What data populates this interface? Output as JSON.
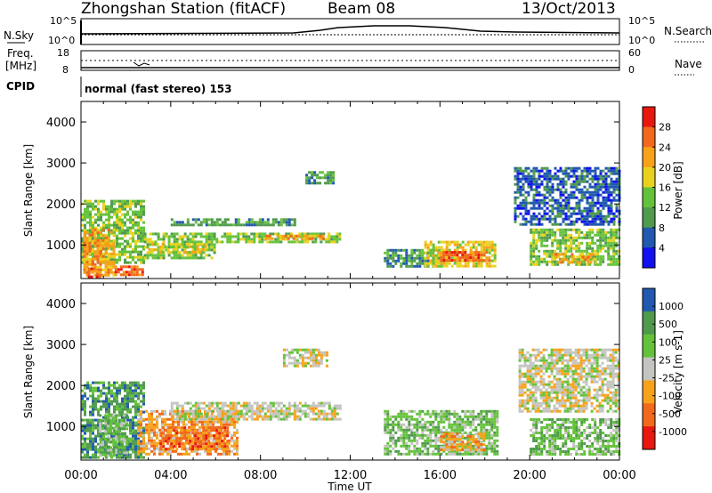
{
  "header": {
    "station": "Zhongshan Station (fitACF)",
    "beam": "Beam 08",
    "date": "13/Oct/2013"
  },
  "noise_panel": {
    "left_label": "N.Sky",
    "right_label": "N.Search",
    "left_top_tick": "10^5",
    "left_bottom_tick": "10^0",
    "right_top_tick": "10^5",
    "right_bottom_tick": "10^0"
  },
  "freq_panel": {
    "left_label_1": "Freq.",
    "left_label_2": "[MHz]",
    "right_label": "Nave",
    "left_top_tick": "18",
    "left_bottom_tick": "8",
    "right_top_tick": "60",
    "right_bottom_tick": "0"
  },
  "cpid": {
    "label": "CPID",
    "mode": "normal (fast stereo) 153"
  },
  "time_axis": {
    "label": "Time UT",
    "ticks": [
      "00:00",
      "04:00",
      "08:00",
      "12:00",
      "16:00",
      "20:00",
      "00:00"
    ]
  },
  "range_axis": {
    "label": "Slant Range [km]",
    "ticks": [
      "1000",
      "2000",
      "3000",
      "4000"
    ]
  },
  "colors": {
    "red": "#e8180f",
    "orange_red": "#f2681c",
    "orange": "#f7a21a",
    "yellow": "#e9d21f",
    "green_light": "#64c23a",
    "green": "#4f9a4d",
    "blue": "#2159b0",
    "blue_bright": "#1010f0",
    "grey": "#c4c4c0"
  },
  "chart_data": [
    {
      "type": "heatmap",
      "title": "Power",
      "colorbar_label": "Power [dB]",
      "colorbar_ticks": [
        "4",
        "8",
        "12",
        "16",
        "20",
        "24",
        "28"
      ],
      "xlabel": "Time UT",
      "ylabel": "Slant Range [km]",
      "xlim": [
        0,
        24
      ],
      "ylim": [
        180,
        4500
      ],
      "regions": [
        {
          "t": [
            0.0,
            2.8
          ],
          "r": [
            600,
            2100
          ],
          "level": 3
        },
        {
          "t": [
            0.1,
            1.5
          ],
          "r": [
            250,
            1400
          ],
          "level": 5
        },
        {
          "t": [
            0.3,
            0.8
          ],
          "r": [
            250,
            450
          ],
          "level": 6
        },
        {
          "t": [
            1.5,
            2.8
          ],
          "r": [
            300,
            500
          ],
          "level": 6
        },
        {
          "t": [
            2.8,
            6.0
          ],
          "r": [
            700,
            1300
          ],
          "level": 3
        },
        {
          "t": [
            3.0,
            5.5
          ],
          "r": [
            800,
            1050
          ],
          "level": 4
        },
        {
          "t": [
            4.0,
            9.5
          ],
          "r": [
            1500,
            1650
          ],
          "level": 2
        },
        {
          "t": [
            6.0,
            11.5
          ],
          "r": [
            1100,
            1300
          ],
          "level": 3
        },
        {
          "t": [
            8.0,
            11.0
          ],
          "r": [
            1150,
            1250
          ],
          "level": 5
        },
        {
          "t": [
            10.0,
            11.2
          ],
          "r": [
            2500,
            2800
          ],
          "level": 2
        },
        {
          "t": [
            13.5,
            16.0
          ],
          "r": [
            500,
            900
          ],
          "level": 2
        },
        {
          "t": [
            15.3,
            18.5
          ],
          "r": [
            450,
            1100
          ],
          "level": 4
        },
        {
          "t": [
            16.0,
            18.2
          ],
          "r": [
            600,
            850
          ],
          "level": 6
        },
        {
          "t": [
            19.3,
            24.0
          ],
          "r": [
            1500,
            2900
          ],
          "level": 1
        },
        {
          "t": [
            20.0,
            24.0
          ],
          "r": [
            500,
            1400
          ],
          "level": 3
        },
        {
          "t": [
            21.0,
            23.0
          ],
          "r": [
            550,
            800
          ],
          "level": 5
        }
      ]
    },
    {
      "type": "heatmap",
      "title": "Velocity",
      "colorbar_label": "Velocity [m s-1]",
      "colorbar_ticks": [
        "1000",
        "500",
        "100",
        "25",
        "-25",
        "-100",
        "-500",
        "-1000"
      ],
      "xlabel": "Time UT",
      "ylabel": "Slant Range [km]",
      "xlim": [
        0,
        24
      ],
      "ylim": [
        180,
        4500
      ],
      "regions": [
        {
          "t": [
            0.0,
            2.8
          ],
          "r": [
            250,
            2100
          ],
          "level": 1
        },
        {
          "t": [
            0.8,
            2.0
          ],
          "r": [
            300,
            1300
          ],
          "level": 2
        },
        {
          "t": [
            2.5,
            7.0
          ],
          "r": [
            300,
            1400
          ],
          "level": 4
        },
        {
          "t": [
            3.5,
            6.5
          ],
          "r": [
            450,
            1000
          ],
          "level": 5
        },
        {
          "t": [
            4.0,
            11.5
          ],
          "r": [
            1200,
            1600
          ],
          "level": 3
        },
        {
          "t": [
            9.0,
            11.0
          ],
          "r": [
            2500,
            2900
          ],
          "level": 3
        },
        {
          "t": [
            13.5,
            18.5
          ],
          "r": [
            300,
            1400
          ],
          "level": 2
        },
        {
          "t": [
            16.0,
            18.0
          ],
          "r": [
            400,
            850
          ],
          "level": 4
        },
        {
          "t": [
            19.5,
            24.0
          ],
          "r": [
            1400,
            2900
          ],
          "level": 3
        },
        {
          "t": [
            20.0,
            24.0
          ],
          "r": [
            300,
            1200
          ],
          "level": 2
        }
      ]
    }
  ]
}
